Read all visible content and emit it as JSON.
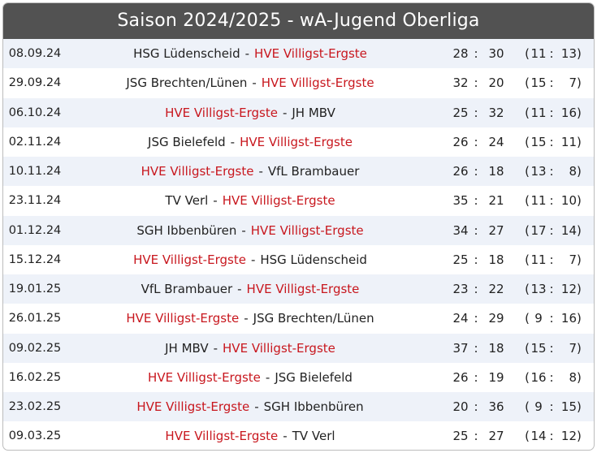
{
  "title": "Saison 2024/2025 - wA-Jugend Oberliga",
  "accent_color": "#c8171e",
  "header_bg": "#525252",
  "stripe_bg": "#eef2f9",
  "rows": [
    {
      "date": "08.09.24",
      "home": "HSG Lüdenscheid",
      "away": "HVE Villigst-Ergste",
      "home_highlight": false,
      "away_highlight": true,
      "sep": "-",
      "colon": ":",
      "goals_home": "28",
      "goals_away": "30",
      "half_open": "(",
      "half_home": "11",
      "half_away": "13",
      "half_close": ")"
    },
    {
      "date": "29.09.24",
      "home": "JSG Brechten/Lünen",
      "away": "HVE Villigst-Ergste",
      "home_highlight": false,
      "away_highlight": true,
      "sep": "-",
      "colon": ":",
      "goals_home": "32",
      "goals_away": "20",
      "half_open": "(",
      "half_home": "15",
      "half_away": "7",
      "half_close": ")"
    },
    {
      "date": "06.10.24",
      "home": "HVE Villigst-Ergste",
      "away": "JH MBV",
      "home_highlight": true,
      "away_highlight": false,
      "sep": "-",
      "colon": ":",
      "goals_home": "25",
      "goals_away": "32",
      "half_open": "(",
      "half_home": "11",
      "half_away": "16",
      "half_close": ")"
    },
    {
      "date": "02.11.24",
      "home": "JSG Bielefeld",
      "away": "HVE Villigst-Ergste",
      "home_highlight": false,
      "away_highlight": true,
      "sep": "-",
      "colon": ":",
      "goals_home": "26",
      "goals_away": "24",
      "half_open": "(",
      "half_home": "15",
      "half_away": "11",
      "half_close": ")"
    },
    {
      "date": "10.11.24",
      "home": "HVE Villigst-Ergste",
      "away": "VfL Brambauer",
      "home_highlight": true,
      "away_highlight": false,
      "sep": "-",
      "colon": ":",
      "goals_home": "26",
      "goals_away": "18",
      "half_open": "(",
      "half_home": "13",
      "half_away": "8",
      "half_close": ")"
    },
    {
      "date": "23.11.24",
      "home": "TV Verl",
      "away": "HVE Villigst-Ergste",
      "home_highlight": false,
      "away_highlight": true,
      "sep": "-",
      "colon": ":",
      "goals_home": "35",
      "goals_away": "21",
      "half_open": "(",
      "half_home": "11",
      "half_away": "10",
      "half_close": ")"
    },
    {
      "date": "01.12.24",
      "home": "SGH Ibbenbüren",
      "away": "HVE Villigst-Ergste",
      "home_highlight": false,
      "away_highlight": true,
      "sep": "-",
      "colon": ":",
      "goals_home": "34",
      "goals_away": "27",
      "half_open": "(",
      "half_home": "17",
      "half_away": "14",
      "half_close": ")"
    },
    {
      "date": "15.12.24",
      "home": "HVE Villigst-Ergste",
      "away": "HSG Lüdenscheid",
      "home_highlight": true,
      "away_highlight": false,
      "sep": "-",
      "colon": ":",
      "goals_home": "25",
      "goals_away": "18",
      "half_open": "(",
      "half_home": "11",
      "half_away": "7",
      "half_close": ")"
    },
    {
      "date": "19.01.25",
      "home": "VfL Brambauer",
      "away": "HVE Villigst-Ergste",
      "home_highlight": false,
      "away_highlight": true,
      "sep": "-",
      "colon": ":",
      "goals_home": "23",
      "goals_away": "22",
      "half_open": "(",
      "half_home": "13",
      "half_away": "12",
      "half_close": ")"
    },
    {
      "date": "26.01.25",
      "home": "HVE Villigst-Ergste",
      "away": "JSG Brechten/Lünen",
      "home_highlight": true,
      "away_highlight": false,
      "sep": "-",
      "colon": ":",
      "goals_home": "24",
      "goals_away": "29",
      "half_open": "(",
      "half_home": "9",
      "half_away": "16",
      "half_close": ")"
    },
    {
      "date": "09.02.25",
      "home": "JH MBV",
      "away": "HVE Villigst-Ergste",
      "home_highlight": false,
      "away_highlight": true,
      "sep": "-",
      "colon": ":",
      "goals_home": "37",
      "goals_away": "18",
      "half_open": "(",
      "half_home": "15",
      "half_away": "7",
      "half_close": ")"
    },
    {
      "date": "16.02.25",
      "home": "HVE Villigst-Ergste",
      "away": "JSG Bielefeld",
      "home_highlight": true,
      "away_highlight": false,
      "sep": "-",
      "colon": ":",
      "goals_home": "26",
      "goals_away": "19",
      "half_open": "(",
      "half_home": "16",
      "half_away": "8",
      "half_close": ")"
    },
    {
      "date": "23.02.25",
      "home": "HVE Villigst-Ergste",
      "away": "SGH Ibbenbüren",
      "home_highlight": true,
      "away_highlight": false,
      "sep": "-",
      "colon": ":",
      "goals_home": "20",
      "goals_away": "36",
      "half_open": "(",
      "half_home": "9",
      "half_away": "15",
      "half_close": ")"
    },
    {
      "date": "09.03.25",
      "home": "HVE Villigst-Ergste",
      "away": "TV Verl",
      "home_highlight": true,
      "away_highlight": false,
      "sep": "-",
      "colon": ":",
      "goals_home": "25",
      "goals_away": "27",
      "half_open": "(",
      "half_home": "14",
      "half_away": "12",
      "half_close": ")"
    }
  ]
}
